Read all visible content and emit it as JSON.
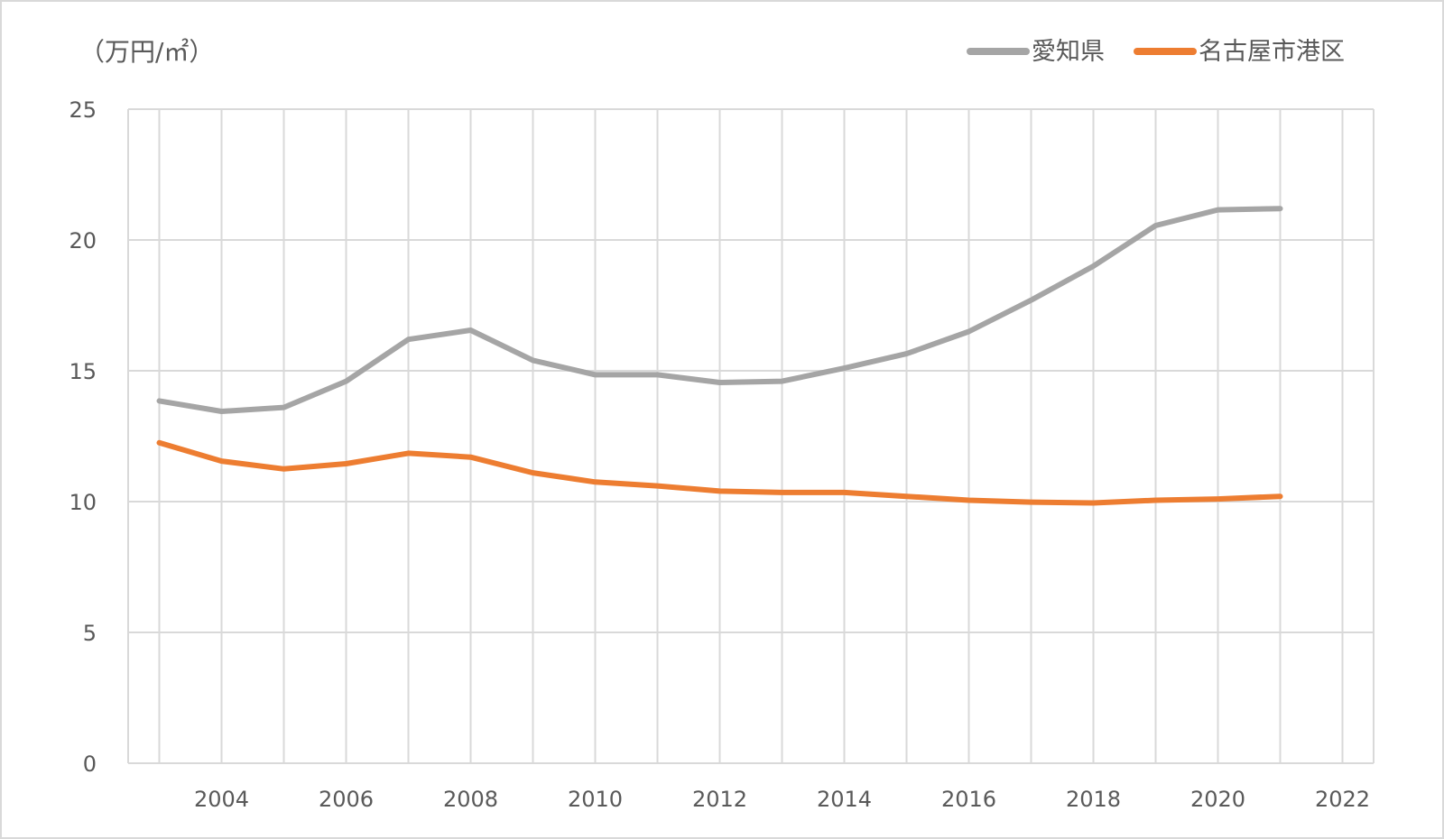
{
  "chart_data": {
    "type": "line",
    "unit_label": "（万円/㎡）",
    "x": [
      2003,
      2004,
      2005,
      2006,
      2007,
      2008,
      2009,
      2010,
      2011,
      2012,
      2013,
      2014,
      2015,
      2016,
      2017,
      2018,
      2019,
      2020,
      2021
    ],
    "series": [
      {
        "name": "愛知県",
        "color": "#a5a5a5",
        "values": [
          13.85,
          13.45,
          13.6,
          14.6,
          16.2,
          16.55,
          15.4,
          14.85,
          14.85,
          14.55,
          14.6,
          15.1,
          15.65,
          16.5,
          17.7,
          19.0,
          20.55,
          21.15,
          21.2
        ]
      },
      {
        "name": "名古屋市港区",
        "color": "#ed7d31",
        "values": [
          12.25,
          11.55,
          11.25,
          11.45,
          11.85,
          11.7,
          11.1,
          10.75,
          10.6,
          10.4,
          10.35,
          10.35,
          10.2,
          10.05,
          9.98,
          9.95,
          10.05,
          10.1,
          10.2
        ]
      }
    ],
    "x_ticks": [
      2004,
      2006,
      2008,
      2010,
      2012,
      2014,
      2016,
      2018,
      2020,
      2022
    ],
    "y_ticks": [
      0,
      5,
      10,
      15,
      20,
      25
    ],
    "xlim": [
      2002.5,
      2022.5
    ],
    "ylim": [
      0,
      25
    ],
    "grid": true,
    "legend_position": "top-right",
    "title": "",
    "xlabel": "",
    "ylabel": "（万円/㎡）"
  }
}
